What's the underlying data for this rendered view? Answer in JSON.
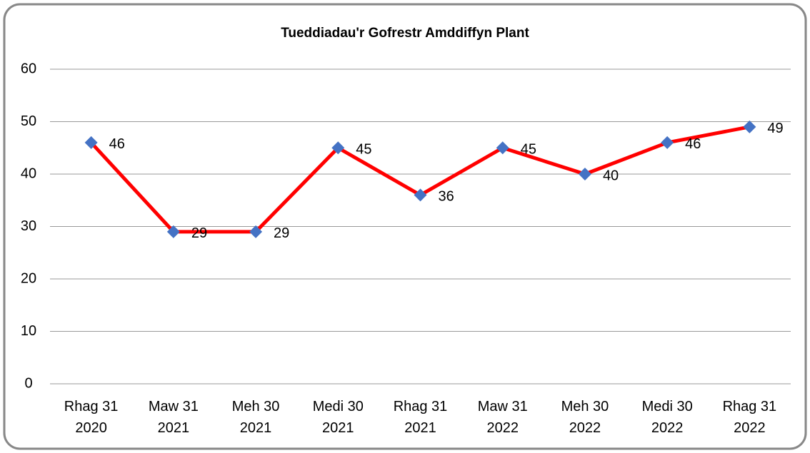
{
  "chart_data": {
    "type": "line",
    "title": "Tueddiadau'r Gofrestr Amddiffyn Plant",
    "categories": [
      "Rhag 31 2020",
      "Maw 31 2021",
      "Meh 30 2021",
      "Medi 30 2021",
      "Rhag 31 2021",
      "Maw 31 2022",
      "Meh 30 2022",
      "Medi 30 2022",
      "Rhag 31 2022"
    ],
    "values": [
      46,
      29,
      29,
      45,
      36,
      45,
      40,
      46,
      49
    ],
    "color": "#ff0000",
    "marker_color": "#4472c4",
    "ylim": [
      0,
      60
    ],
    "yticks": [
      0,
      10,
      20,
      30,
      40,
      50,
      60
    ],
    "grid": true
  }
}
